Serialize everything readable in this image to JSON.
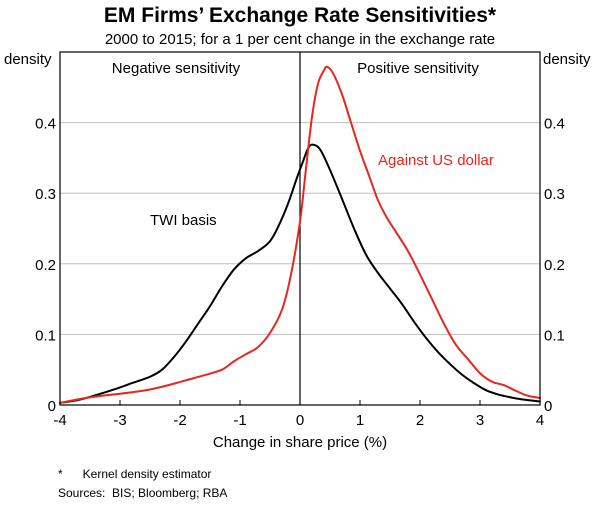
{
  "chart_data": {
    "type": "line",
    "title": "EM Firms’ Exchange Rate Sensitivities*",
    "subtitle": "2000 to 2015; for a 1 per cent change in the exchange rate",
    "xlabel": "Change in share price (%)",
    "ylabel_left": "density",
    "ylabel_right": "density",
    "xlim": [
      -4,
      4
    ],
    "ylim": [
      0,
      0.5
    ],
    "x_ticks": [
      -4,
      -3,
      -2,
      -1,
      0,
      1,
      2,
      3,
      4
    ],
    "y_ticks": [
      0,
      0.1,
      0.2,
      0.3,
      0.4
    ],
    "y_tick_labels": [
      "0",
      "0.1",
      "0.2",
      "0.3",
      "0.4"
    ],
    "grid": true,
    "regions": [
      {
        "label": "Negative sensitivity",
        "side": "left"
      },
      {
        "label": "Positive sensitivity",
        "side": "right"
      }
    ],
    "series": [
      {
        "name": "TWI basis",
        "color": "#000000",
        "points": [
          [
            -4.0,
            0.003
          ],
          [
            -3.7,
            0.007
          ],
          [
            -3.4,
            0.014
          ],
          [
            -3.1,
            0.022
          ],
          [
            -2.8,
            0.031
          ],
          [
            -2.5,
            0.04
          ],
          [
            -2.3,
            0.05
          ],
          [
            -2.1,
            0.068
          ],
          [
            -1.9,
            0.09
          ],
          [
            -1.7,
            0.115
          ],
          [
            -1.5,
            0.14
          ],
          [
            -1.3,
            0.168
          ],
          [
            -1.1,
            0.192
          ],
          [
            -0.9,
            0.208
          ],
          [
            -0.7,
            0.218
          ],
          [
            -0.5,
            0.232
          ],
          [
            -0.35,
            0.255
          ],
          [
            -0.2,
            0.285
          ],
          [
            -0.05,
            0.322
          ],
          [
            0.05,
            0.345
          ],
          [
            0.15,
            0.366
          ],
          [
            0.25,
            0.368
          ],
          [
            0.35,
            0.36
          ],
          [
            0.5,
            0.333
          ],
          [
            0.7,
            0.292
          ],
          [
            0.9,
            0.25
          ],
          [
            1.1,
            0.213
          ],
          [
            1.3,
            0.187
          ],
          [
            1.5,
            0.165
          ],
          [
            1.7,
            0.143
          ],
          [
            1.9,
            0.118
          ],
          [
            2.1,
            0.095
          ],
          [
            2.3,
            0.075
          ],
          [
            2.5,
            0.058
          ],
          [
            2.7,
            0.043
          ],
          [
            2.9,
            0.031
          ],
          [
            3.1,
            0.021
          ],
          [
            3.3,
            0.015
          ],
          [
            3.5,
            0.011
          ],
          [
            3.7,
            0.008
          ],
          [
            4.0,
            0.005
          ]
        ]
      },
      {
        "name": "Against US dollar",
        "color": "#e8251f",
        "points": [
          [
            -4.0,
            0.003
          ],
          [
            -3.7,
            0.008
          ],
          [
            -3.4,
            0.012
          ],
          [
            -3.1,
            0.015
          ],
          [
            -2.8,
            0.018
          ],
          [
            -2.5,
            0.022
          ],
          [
            -2.2,
            0.028
          ],
          [
            -1.9,
            0.035
          ],
          [
            -1.6,
            0.042
          ],
          [
            -1.3,
            0.05
          ],
          [
            -1.1,
            0.062
          ],
          [
            -0.9,
            0.072
          ],
          [
            -0.7,
            0.082
          ],
          [
            -0.5,
            0.102
          ],
          [
            -0.3,
            0.135
          ],
          [
            -0.15,
            0.185
          ],
          [
            0.0,
            0.26
          ],
          [
            0.1,
            0.335
          ],
          [
            0.2,
            0.408
          ],
          [
            0.3,
            0.455
          ],
          [
            0.4,
            0.474
          ],
          [
            0.45,
            0.479
          ],
          [
            0.55,
            0.47
          ],
          [
            0.7,
            0.44
          ],
          [
            0.85,
            0.4
          ],
          [
            1.0,
            0.36
          ],
          [
            1.15,
            0.325
          ],
          [
            1.3,
            0.29
          ],
          [
            1.45,
            0.265
          ],
          [
            1.6,
            0.245
          ],
          [
            1.8,
            0.218
          ],
          [
            2.0,
            0.185
          ],
          [
            2.2,
            0.15
          ],
          [
            2.4,
            0.115
          ],
          [
            2.6,
            0.085
          ],
          [
            2.8,
            0.065
          ],
          [
            3.0,
            0.045
          ],
          [
            3.2,
            0.033
          ],
          [
            3.4,
            0.028
          ],
          [
            3.6,
            0.02
          ],
          [
            3.8,
            0.013
          ],
          [
            4.0,
            0.01
          ]
        ]
      }
    ],
    "annotations": [
      {
        "text": "TWI basis",
        "series": "TWI basis",
        "x": -2.5,
        "y": 0.255
      },
      {
        "text": "Against US dollar",
        "series": "Against US dollar",
        "x": 1.3,
        "y": 0.34
      }
    ],
    "footnote": "*      Kernel density estimator",
    "sources": "Sources:  BIS; Bloomberg; RBA"
  }
}
